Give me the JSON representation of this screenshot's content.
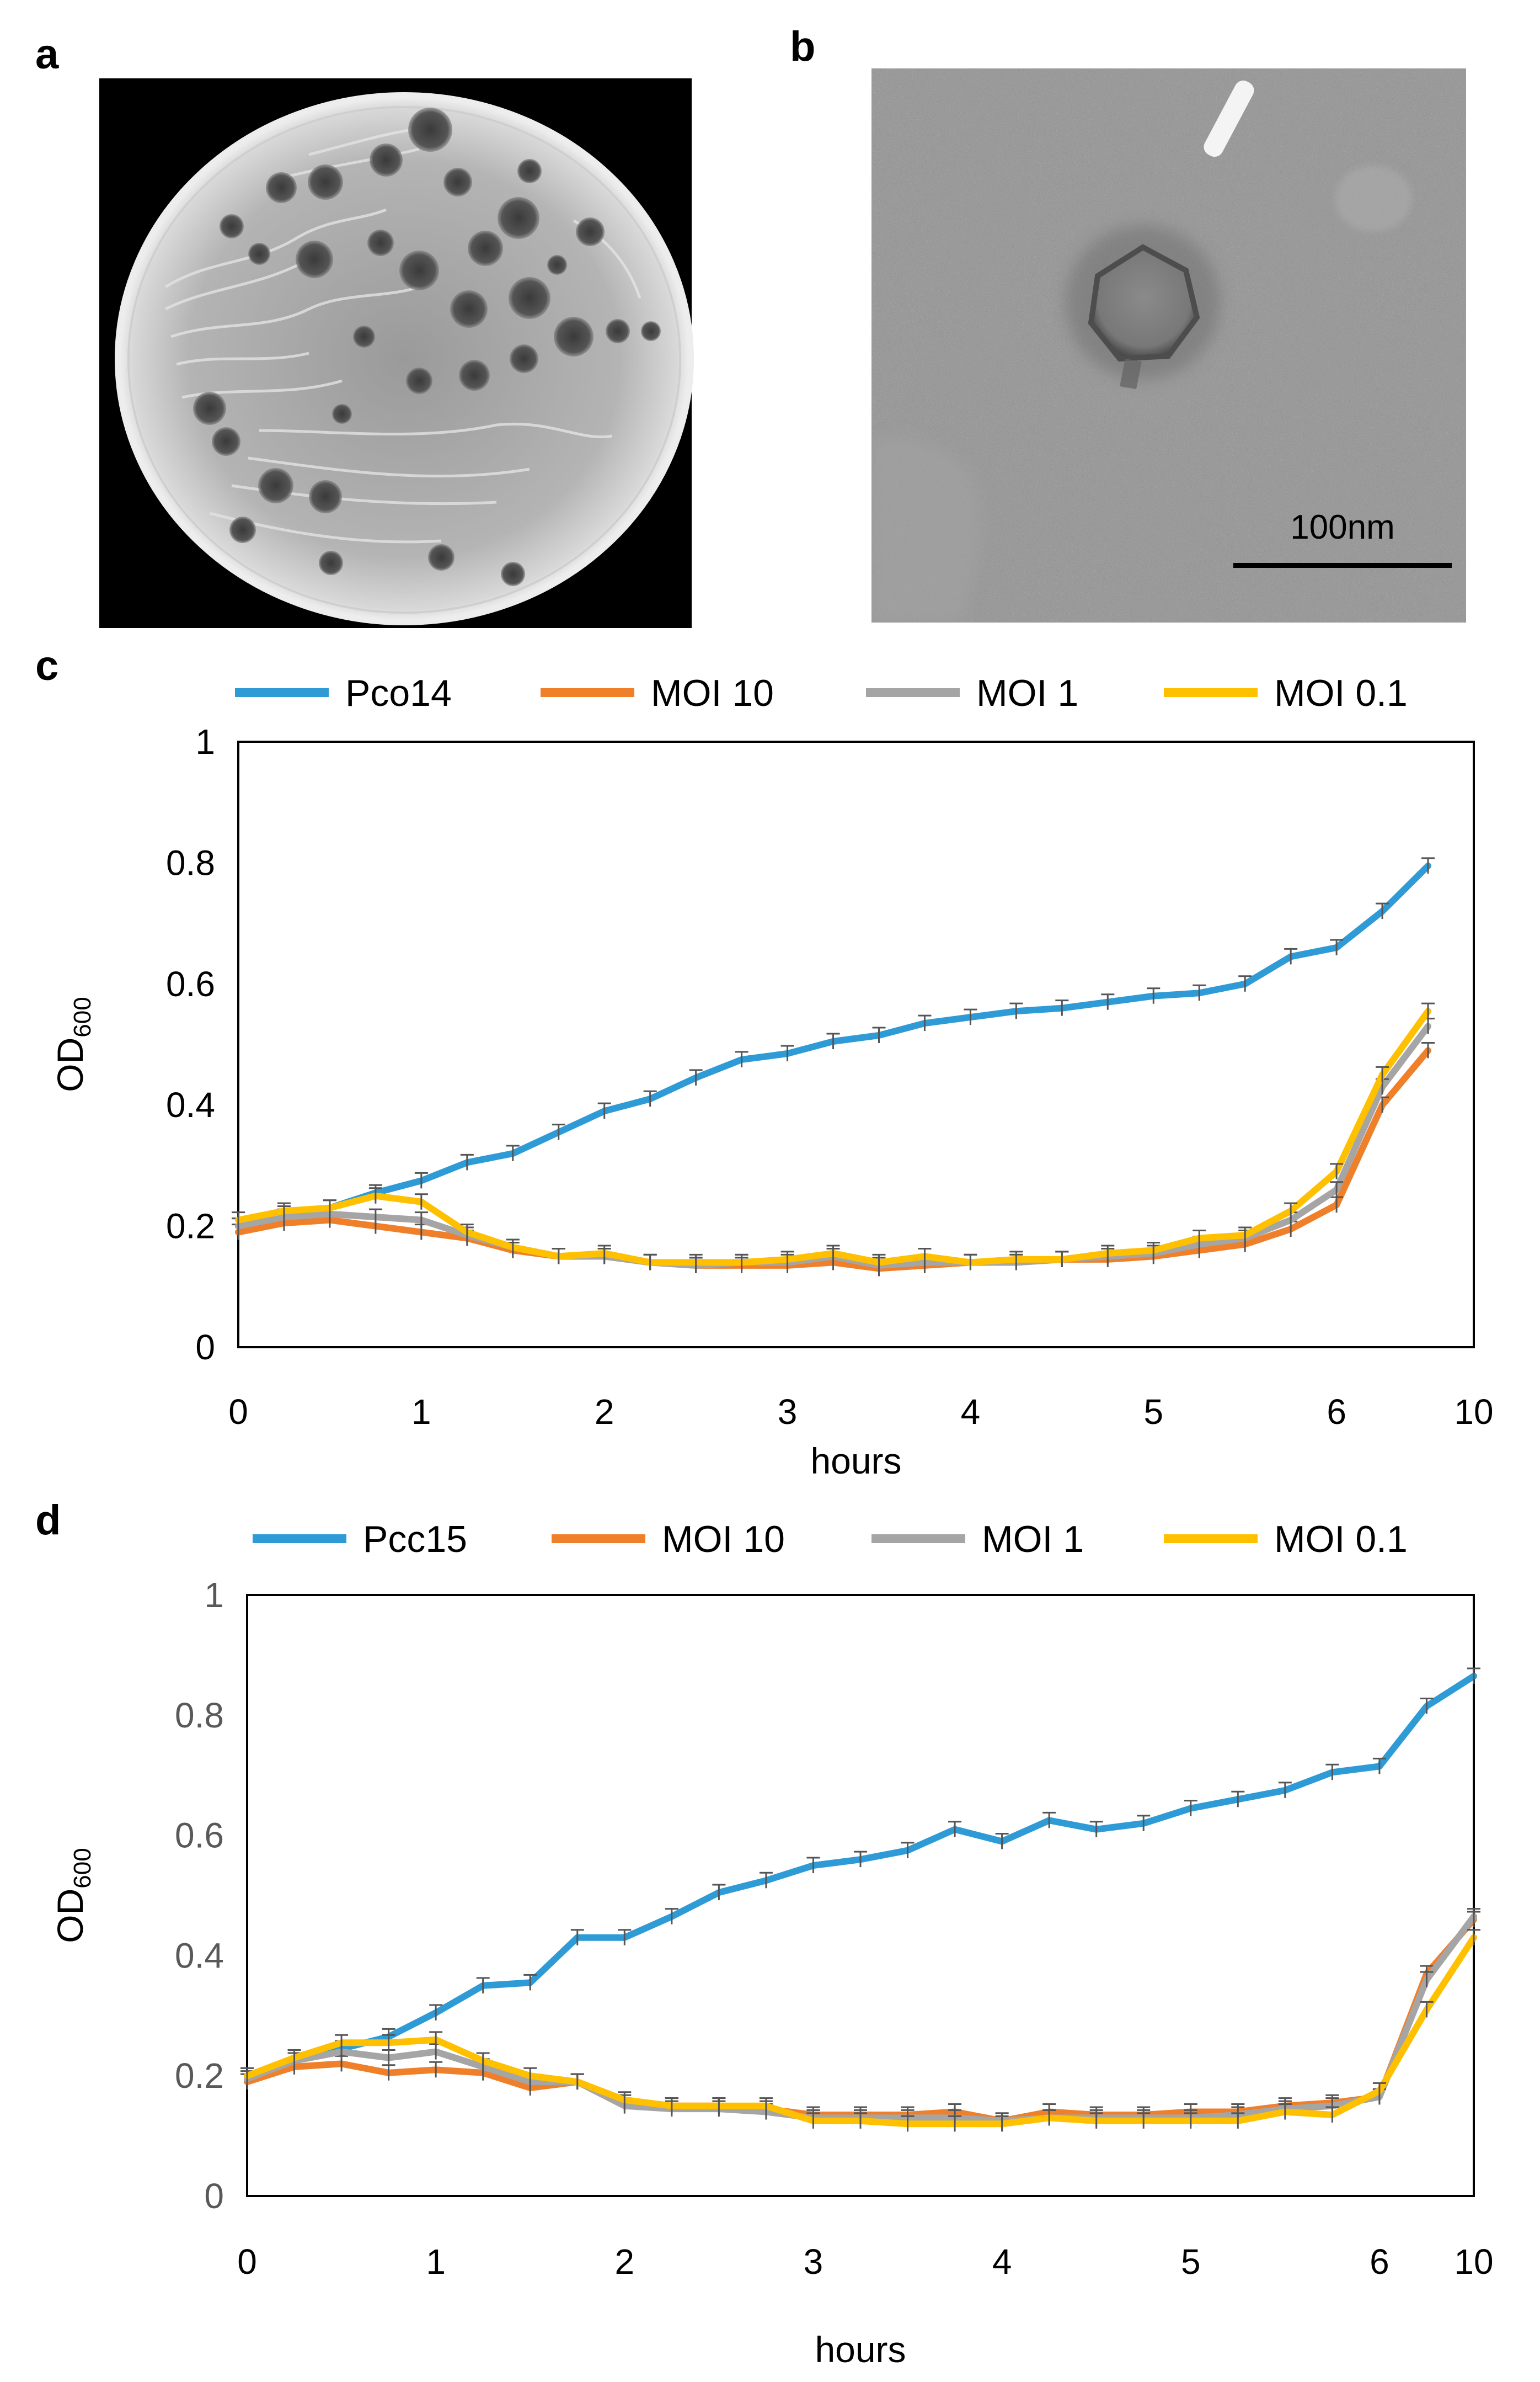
{
  "panels": {
    "a": {
      "label": "a"
    },
    "b": {
      "label": "b",
      "scale_bar": "100nm"
    }
  },
  "chart_data": [
    {
      "panel": "c",
      "type": "line",
      "xlabel": "hours",
      "ylabel": "OD600",
      "ylabel_main": "OD",
      "ylabel_sub": "600",
      "x_ticks": [
        "0",
        "1",
        "2",
        "3",
        "4",
        "5",
        "6",
        "10"
      ],
      "y_ticks": [
        "0",
        "0.2",
        "0.4",
        "0.6",
        "0.8",
        "1"
      ],
      "ylim": [
        0,
        1
      ],
      "grid": false,
      "legend_position": "top",
      "x": [
        0,
        0.25,
        0.5,
        0.75,
        1,
        1.25,
        1.5,
        1.75,
        2,
        2.25,
        2.5,
        2.75,
        3,
        3.25,
        3.5,
        3.75,
        4,
        4.25,
        4.5,
        4.75,
        5,
        5.25,
        5.5,
        5.75,
        6,
        6.25,
        6.5,
        6.75
      ],
      "series": [
        {
          "name": "Pco14",
          "color": "#2e9bd6",
          "values": [
            0.2,
            0.22,
            0.23,
            0.255,
            0.275,
            0.305,
            0.32,
            0.355,
            0.39,
            0.41,
            0.445,
            0.475,
            0.485,
            0.505,
            0.515,
            0.535,
            0.545,
            0.555,
            0.56,
            0.57,
            0.58,
            0.585,
            0.6,
            0.645,
            0.66,
            0.72,
            0.795,
            null
          ]
        },
        {
          "name": "MOI 10",
          "color": "#f07f2a",
          "values": [
            0.19,
            0.205,
            0.21,
            0.2,
            0.19,
            0.18,
            0.16,
            0.15,
            0.15,
            0.14,
            0.135,
            0.135,
            0.135,
            0.14,
            0.13,
            0.135,
            0.14,
            0.14,
            0.145,
            0.145,
            0.15,
            0.16,
            0.17,
            0.195,
            0.235,
            0.4,
            0.49,
            null
          ]
        },
        {
          "name": "MOI 1",
          "color": "#a5a5a5",
          "values": [
            0.2,
            0.215,
            0.22,
            0.215,
            0.21,
            0.185,
            0.165,
            0.15,
            0.15,
            0.14,
            0.135,
            0.14,
            0.14,
            0.15,
            0.135,
            0.14,
            0.14,
            0.14,
            0.145,
            0.15,
            0.155,
            0.17,
            0.18,
            0.21,
            0.26,
            0.43,
            0.53,
            null
          ]
        },
        {
          "name": "MOI 0.1",
          "color": "#ffc000",
          "values": [
            0.21,
            0.225,
            0.23,
            0.25,
            0.24,
            0.19,
            0.165,
            0.15,
            0.155,
            0.14,
            0.14,
            0.14,
            0.145,
            0.155,
            0.14,
            0.15,
            0.14,
            0.145,
            0.145,
            0.155,
            0.16,
            0.18,
            0.185,
            0.225,
            0.29,
            0.45,
            0.555,
            null
          ]
        }
      ]
    },
    {
      "panel": "d",
      "type": "line",
      "xlabel": "hours",
      "ylabel": "OD600",
      "ylabel_main": "OD",
      "ylabel_sub": "600",
      "x_ticks": [
        "0",
        "1",
        "2",
        "3",
        "4",
        "5",
        "6",
        "10"
      ],
      "y_ticks": [
        "0",
        "0.2",
        "0.4",
        "0.6",
        "0.8",
        "1"
      ],
      "ylim": [
        0,
        1
      ],
      "grid": false,
      "legend_position": "top",
      "x": [
        0,
        0.25,
        0.5,
        0.75,
        1,
        1.25,
        1.5,
        1.75,
        2,
        2.25,
        2.5,
        2.75,
        3,
        3.25,
        3.5,
        3.75,
        4,
        4.25,
        4.5,
        4.75,
        5,
        5.25,
        5.5,
        5.75,
        6,
        6.25,
        6.5
      ],
      "series": [
        {
          "name": "Pcc15",
          "color": "#2e9bd6",
          "values": [
            0.2,
            0.225,
            0.245,
            0.265,
            0.305,
            0.35,
            0.355,
            0.43,
            0.43,
            0.465,
            0.505,
            0.525,
            0.55,
            0.56,
            0.575,
            0.61,
            0.59,
            0.625,
            0.61,
            0.62,
            0.645,
            0.66,
            0.675,
            0.705,
            0.715,
            0.815,
            0.865
          ]
        },
        {
          "name": "MOI 10",
          "color": "#f07f2a",
          "values": [
            0.19,
            0.215,
            0.22,
            0.205,
            0.21,
            0.205,
            0.18,
            0.19,
            0.155,
            0.15,
            0.15,
            0.145,
            0.135,
            0.135,
            0.135,
            0.14,
            0.125,
            0.14,
            0.135,
            0.135,
            0.14,
            0.14,
            0.15,
            0.155,
            0.165,
            0.37,
            0.46
          ]
        },
        {
          "name": "MOI 1",
          "color": "#a5a5a5",
          "values": [
            0.195,
            0.225,
            0.24,
            0.23,
            0.24,
            0.215,
            0.19,
            0.19,
            0.15,
            0.145,
            0.145,
            0.14,
            0.13,
            0.13,
            0.13,
            0.13,
            0.125,
            0.13,
            0.13,
            0.13,
            0.13,
            0.135,
            0.145,
            0.15,
            0.165,
            0.36,
            0.465
          ]
        },
        {
          "name": "MOI 0.1",
          "color": "#ffc000",
          "values": [
            0.2,
            0.23,
            0.255,
            0.255,
            0.26,
            0.225,
            0.2,
            0.19,
            0.16,
            0.15,
            0.15,
            0.15,
            0.125,
            0.125,
            0.12,
            0.12,
            0.12,
            0.13,
            0.125,
            0.125,
            0.125,
            0.125,
            0.14,
            0.135,
            0.175,
            0.31,
            0.43
          ]
        }
      ]
    }
  ]
}
